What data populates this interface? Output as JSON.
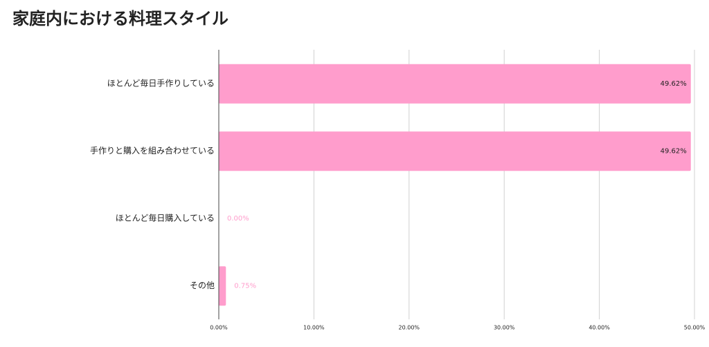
{
  "chart_data": {
    "type": "bar",
    "orientation": "horizontal",
    "title": "家庭内における料理スタイル",
    "categories": [
      "ほとんど毎日手作りしている",
      "手作りと購入を組み合わせている",
      "ほとんど毎日購入している",
      "その他"
    ],
    "values": [
      49.62,
      49.62,
      0,
      0.75
    ],
    "value_labels": [
      "49.62%",
      "49.62%",
      "0.00%",
      "0.75%"
    ],
    "color": "#ff9dcc",
    "xlim": [
      0,
      50
    ],
    "xticks": [
      {
        "value": 0,
        "label": "0.00%"
      },
      {
        "value": 10,
        "label": "10.00%"
      },
      {
        "value": 20,
        "label": "20.00%"
      },
      {
        "value": 30,
        "label": "30.00%"
      },
      {
        "value": 40,
        "label": "40.00%"
      },
      {
        "value": 50,
        "label": "50.00%"
      }
    ],
    "grid": true
  }
}
